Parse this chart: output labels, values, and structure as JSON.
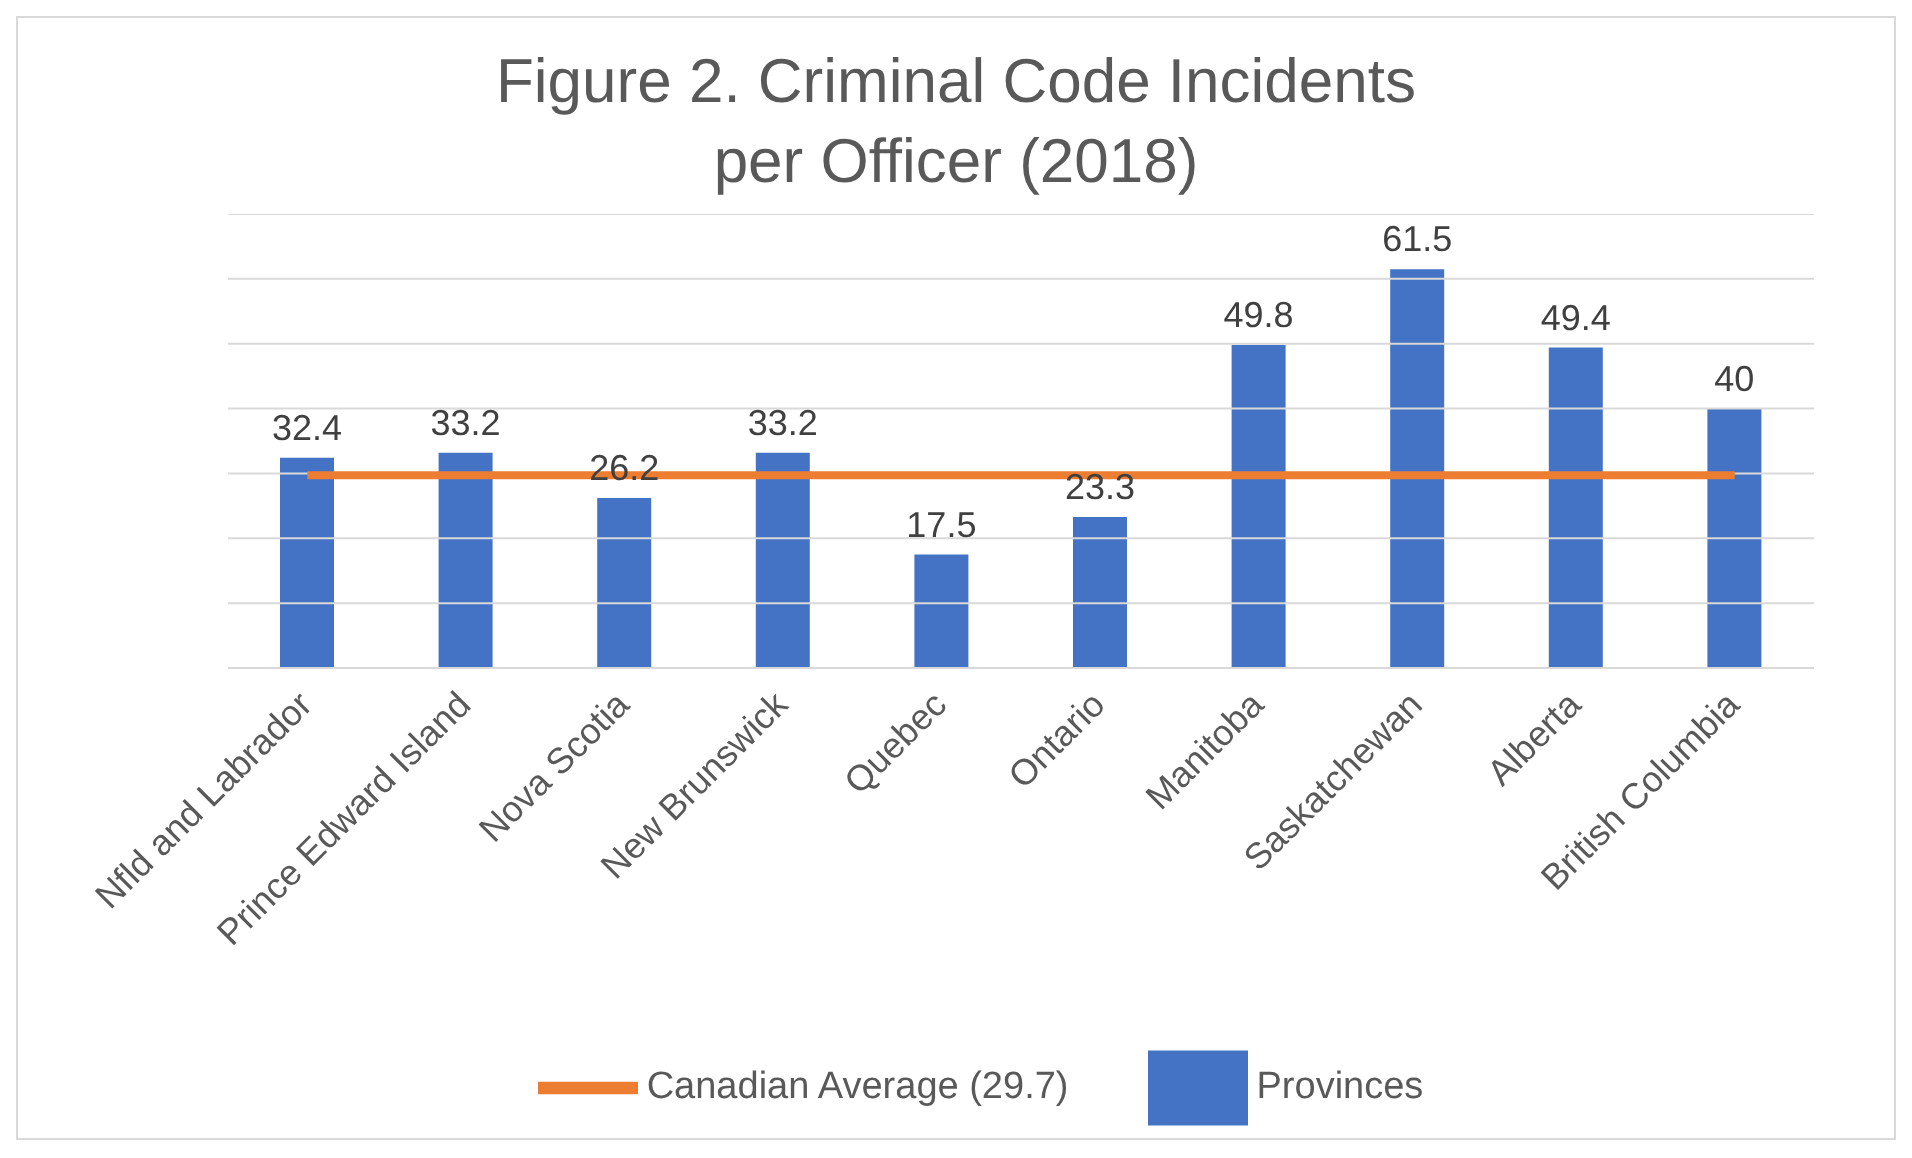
{
  "chart_data": {
    "type": "bar",
    "title": "Figure 2. Criminal Code Incidents per Officer (2018)",
    "categories": [
      "Nfld and Labrador",
      "Prince Edward Island",
      "Nova Scotia",
      "New Brunswick",
      "Quebec",
      "Ontario",
      "Manitoba",
      "Saskatchewan",
      "Alberta",
      "British Columbia"
    ],
    "series": [
      {
        "name": "Provinces",
        "color": "#4472c4",
        "values": [
          32.4,
          33.2,
          26.2,
          33.2,
          17.5,
          23.3,
          49.8,
          61.5,
          49.4,
          40
        ],
        "value_labels": [
          "32.4",
          "33.2",
          "26.2",
          "33.2",
          "17.5",
          "23.3",
          "49.8",
          "61.5",
          "49.4",
          "40"
        ]
      },
      {
        "name": "Canadian Average (29.7)",
        "type": "line",
        "color": "#ed7d31",
        "values": [
          29.7,
          29.7,
          29.7,
          29.7,
          29.7,
          29.7,
          29.7,
          29.7,
          29.7,
          29.7
        ]
      }
    ],
    "ylim": [
      0,
      70
    ],
    "yticks": [
      {
        "value": 0,
        "label": null
      },
      {
        "value": 10,
        "label": null
      },
      {
        "value": 20,
        "label": null
      },
      {
        "value": 30,
        "label": null
      },
      {
        "value": 40,
        "label": null
      },
      {
        "value": 50,
        "label": null
      },
      {
        "value": 60,
        "label": null
      },
      {
        "value": 70,
        "label": null
      }
    ],
    "tick_labels": "x",
    "grid": "y",
    "legend": "bottom"
  }
}
